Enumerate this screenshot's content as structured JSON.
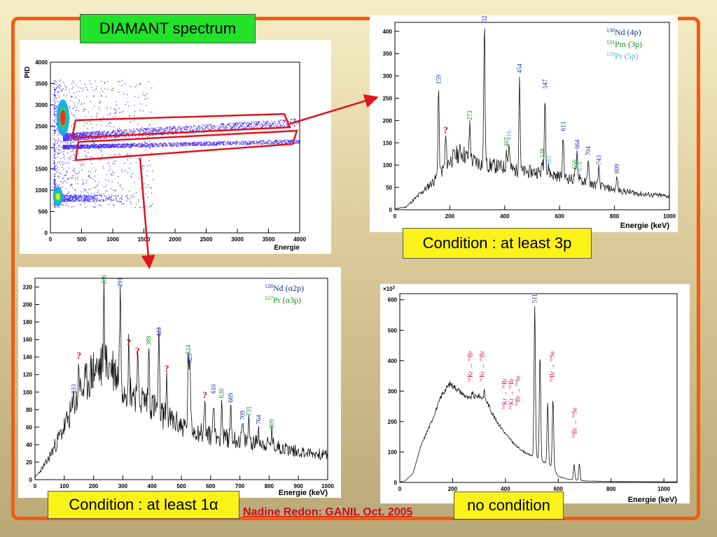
{
  "slide": {
    "title_label": "DIAMANT spectrum",
    "credit": "Nadine Redon:  GANIL Oct. 2005",
    "frame_color": "#f25c0f",
    "arrow_color": "#e0141c",
    "label_bg_green": "#22e22a",
    "label_bg_yellow": "#fbf21a"
  },
  "captions": {
    "top_right": "Condition : at least 3p",
    "bottom_left": "Condition : at least 1α",
    "bottom_right": "no condition"
  },
  "chart_data": [
    {
      "id": "pid",
      "type": "scatter",
      "title": "",
      "xlabel": "Energie",
      "ylabel": "PID",
      "xlim": [
        0,
        4000
      ],
      "ylim": [
        0,
        4000
      ],
      "xticks": [
        0,
        500,
        1000,
        1500,
        2000,
        2500,
        3000,
        3500,
        4000
      ],
      "yticks": [
        0,
        500,
        1000,
        1500,
        2000,
        2500,
        3000,
        3500,
        4000
      ],
      "bands": [
        {
          "name": "proton gate",
          "x": [
            200,
            4000
          ],
          "y_start": 2250,
          "y_end": 2600
        },
        {
          "name": "alpha gate",
          "x": [
            200,
            4000
          ],
          "y_start": 2020,
          "y_end": 2150
        }
      ],
      "blobs": [
        {
          "x": 200,
          "y": 2700,
          "level": "high"
        },
        {
          "x": 120,
          "y": 850,
          "level": "high"
        }
      ]
    },
    {
      "id": "cond3p",
      "type": "line",
      "xlabel": "Energie (keV)",
      "ylabel": "",
      "xlim": [
        0,
        1000
      ],
      "ylim": [
        0,
        420
      ],
      "xticks": [
        0,
        200,
        400,
        600,
        800,
        1000
      ],
      "yticks": [
        0,
        50,
        100,
        150,
        200,
        250,
        300,
        350,
        400
      ],
      "legend": [
        {
          "text": "Nd (4p)",
          "sup": "130",
          "color": "#1a2a9a"
        },
        {
          "text": "Pm (3p)",
          "sup": "131",
          "color": "#138a1a"
        },
        {
          "text": "Pr (5p)",
          "sup": "129",
          "color": "#55aadd"
        }
      ],
      "background": [
        [
          0,
          2
        ],
        [
          40,
          6
        ],
        [
          100,
          40
        ],
        [
          150,
          70
        ],
        [
          200,
          110
        ],
        [
          240,
          130
        ],
        [
          280,
          110
        ],
        [
          340,
          100
        ],
        [
          400,
          95
        ],
        [
          460,
          85
        ],
        [
          520,
          85
        ],
        [
          600,
          75
        ],
        [
          700,
          60
        ],
        [
          800,
          45
        ],
        [
          900,
          35
        ],
        [
          1000,
          30
        ]
      ],
      "peaks": [
        {
          "x": 159,
          "y": 275,
          "label": "159",
          "color": "#1a2a9a"
        },
        {
          "x": 185,
          "y": 165,
          "label": "?",
          "color": "#e0141c"
        },
        {
          "x": 273,
          "y": 195,
          "label": "273",
          "color": "#138a1a"
        },
        {
          "x": 326,
          "y": 415,
          "label": "326",
          "color": "#1a2a9a"
        },
        {
          "x": 407,
          "y": 135,
          "label": "407",
          "color": "#138a1a"
        },
        {
          "x": 416,
          "y": 150,
          "label": "416",
          "color": "#55aadd"
        },
        {
          "x": 454,
          "y": 300,
          "label": "454",
          "color": "#1a2a9a"
        },
        {
          "x": 538,
          "y": 110,
          "label": "538",
          "color": "#138a1a"
        },
        {
          "x": 547,
          "y": 265,
          "label": "547",
          "color": "#1a2a9a"
        },
        {
          "x": 561,
          "y": 95,
          "label": "561",
          "color": "#55aadd"
        },
        {
          "x": 613,
          "y": 170,
          "label": "613",
          "color": "#1a2a9a"
        },
        {
          "x": 656,
          "y": 85,
          "label": "656",
          "color": "#138a1a"
        },
        {
          "x": 664,
          "y": 130,
          "label": "664",
          "color": "#1a2a9a"
        },
        {
          "x": 674,
          "y": 80,
          "label": "674",
          "color": "#55aadd"
        },
        {
          "x": 704,
          "y": 115,
          "label": "704",
          "color": "#1a2a9a"
        },
        {
          "x": 743,
          "y": 95,
          "label": "743",
          "color": "#1a2a9a"
        },
        {
          "x": 809,
          "y": 75,
          "label": "809",
          "color": "#1a2a9a"
        }
      ]
    },
    {
      "id": "cond1a",
      "type": "line",
      "xlabel": "Energie (keV)",
      "ylabel": "",
      "xlim": [
        0,
        1000
      ],
      "ylim": [
        0,
        230
      ],
      "xticks": [
        0,
        100,
        200,
        300,
        400,
        500,
        600,
        700,
        800,
        900,
        1000
      ],
      "yticks": [
        0,
        20,
        40,
        60,
        80,
        100,
        120,
        140,
        160,
        180,
        200,
        220
      ],
      "legend": [
        {
          "text": "Nd (α2p)",
          "sup": "128",
          "color": "#1a2a9a"
        },
        {
          "text": "Pr (α3p)",
          "sup": "127",
          "color": "#138a1a"
        }
      ],
      "background": [
        [
          0,
          2
        ],
        [
          40,
          20
        ],
        [
          100,
          60
        ],
        [
          150,
          95
        ],
        [
          200,
          125
        ],
        [
          260,
          130
        ],
        [
          300,
          110
        ],
        [
          350,
          95
        ],
        [
          400,
          85
        ],
        [
          450,
          70
        ],
        [
          500,
          62
        ],
        [
          600,
          50
        ],
        [
          700,
          45
        ],
        [
          800,
          40
        ],
        [
          900,
          32
        ],
        [
          1000,
          28
        ]
      ],
      "peaks": [
        {
          "x": 133,
          "y": 95,
          "label": "133",
          "color": "#1a2a9a"
        },
        {
          "x": 150,
          "y": 135,
          "label": "?",
          "color": "#e0141c"
        },
        {
          "x": 236,
          "y": 220,
          "label": "236",
          "color": "#138a1a"
        },
        {
          "x": 291,
          "y": 217,
          "label": "291",
          "color": "#1a2a9a"
        },
        {
          "x": 320,
          "y": 150,
          "label": "?",
          "color": "#e0141c"
        },
        {
          "x": 350,
          "y": 140,
          "label": "?",
          "color": "#e0141c"
        },
        {
          "x": 389,
          "y": 150,
          "label": "389",
          "color": "#138a1a"
        },
        {
          "x": 423,
          "y": 160,
          "label": "423",
          "color": "#1a2a9a"
        },
        {
          "x": 450,
          "y": 120,
          "label": "?",
          "color": "#e0141c"
        },
        {
          "x": 524,
          "y": 140,
          "label": "524",
          "color": "#138a1a"
        },
        {
          "x": 529,
          "y": 130,
          "label": "529",
          "color": "#1a2a9a"
        },
        {
          "x": 580,
          "y": 90,
          "label": "?",
          "color": "#e0141c"
        },
        {
          "x": 610,
          "y": 95,
          "label": "610",
          "color": "#1a2a9a"
        },
        {
          "x": 638,
          "y": 90,
          "label": "638",
          "color": "#138a1a"
        },
        {
          "x": 669,
          "y": 85,
          "label": "669",
          "color": "#1a2a9a"
        },
        {
          "x": 709,
          "y": 65,
          "label": "709",
          "color": "#1a2a9a"
        },
        {
          "x": 731,
          "y": 70,
          "label": "731",
          "color": "#138a1a"
        },
        {
          "x": 764,
          "y": 60,
          "label": "764",
          "color": "#1a2a9a"
        },
        {
          "x": 809,
          "y": 55,
          "label": "809",
          "color": "#138a1a"
        }
      ]
    },
    {
      "id": "nocond",
      "type": "line",
      "xlabel": "Energie (keV)",
      "ylabel": "",
      "y_multiplier": "×10",
      "y_multiplier_exp": "3",
      "xlim": [
        0,
        1050
      ],
      "ylim": [
        0,
        620
      ],
      "xticks": [
        0,
        200,
        400,
        600,
        800,
        1000
      ],
      "yticks": [
        0,
        100,
        200,
        300,
        400,
        500,
        600
      ],
      "background": [
        [
          0,
          2
        ],
        [
          20,
          5
        ],
        [
          50,
          30
        ],
        [
          80,
          120
        ],
        [
          120,
          200
        ],
        [
          160,
          290
        ],
        [
          190,
          325
        ],
        [
          220,
          305
        ],
        [
          260,
          275
        ],
        [
          300,
          285
        ],
        [
          330,
          265
        ],
        [
          360,
          210
        ],
        [
          400,
          160
        ],
        [
          440,
          120
        ],
        [
          480,
          95
        ],
        [
          520,
          80
        ],
        [
          560,
          60
        ],
        [
          580,
          50
        ],
        [
          600,
          20
        ],
        [
          640,
          10
        ],
        [
          700,
          5
        ],
        [
          800,
          3
        ],
        [
          1050,
          2
        ]
      ],
      "peaks": [
        {
          "x": 275,
          "y": 295,
          "label": "",
          "color": "#c0105a"
        },
        {
          "x": 320,
          "y": 300,
          "label": "",
          "color": "#c0105a"
        },
        {
          "x": 445,
          "y": 110,
          "label": "",
          "color": "#c0105a"
        },
        {
          "x": 511,
          "y": 580,
          "label": "511",
          "color": "#1a2a9a"
        },
        {
          "x": 531,
          "y": 420,
          "label": "",
          "color": "#c0105a"
        },
        {
          "x": 560,
          "y": 260,
          "label": "",
          "color": "#c0105a"
        },
        {
          "x": 580,
          "y": 275,
          "label": "",
          "color": "#c0105a"
        },
        {
          "x": 660,
          "y": 60,
          "label": "",
          "color": "#c0105a"
        },
        {
          "x": 680,
          "y": 62,
          "label": "",
          "color": "#c0105a"
        }
      ],
      "annotations": [
        {
          "text": "⁷⁶Kr → ⁷⁶Br",
          "x": 275,
          "color": "#c0105a"
        },
        {
          "text": "⁷⁶Kr → ⁷⁶Br",
          "x": 320,
          "color": "#c0105a"
        },
        {
          "text": "⁷⁶Kr → ⁷⁶Br",
          "x": 405,
          "color": "#c0105a"
        },
        {
          "text": "⁷⁶Kr → ⁷⁶Br",
          "x": 430,
          "color": "#c0105a"
        },
        {
          "text": "⁷⁶Br → ⁷⁶Se",
          "x": 455,
          "color": "#c0105a"
        },
        {
          "text": "⁷⁶Br → ⁷⁶Se",
          "x": 585,
          "color": "#c0105a"
        },
        {
          "text": "⁷⁶Br → ⁷⁶Se",
          "x": 670,
          "color": "#c0105a"
        }
      ]
    }
  ]
}
